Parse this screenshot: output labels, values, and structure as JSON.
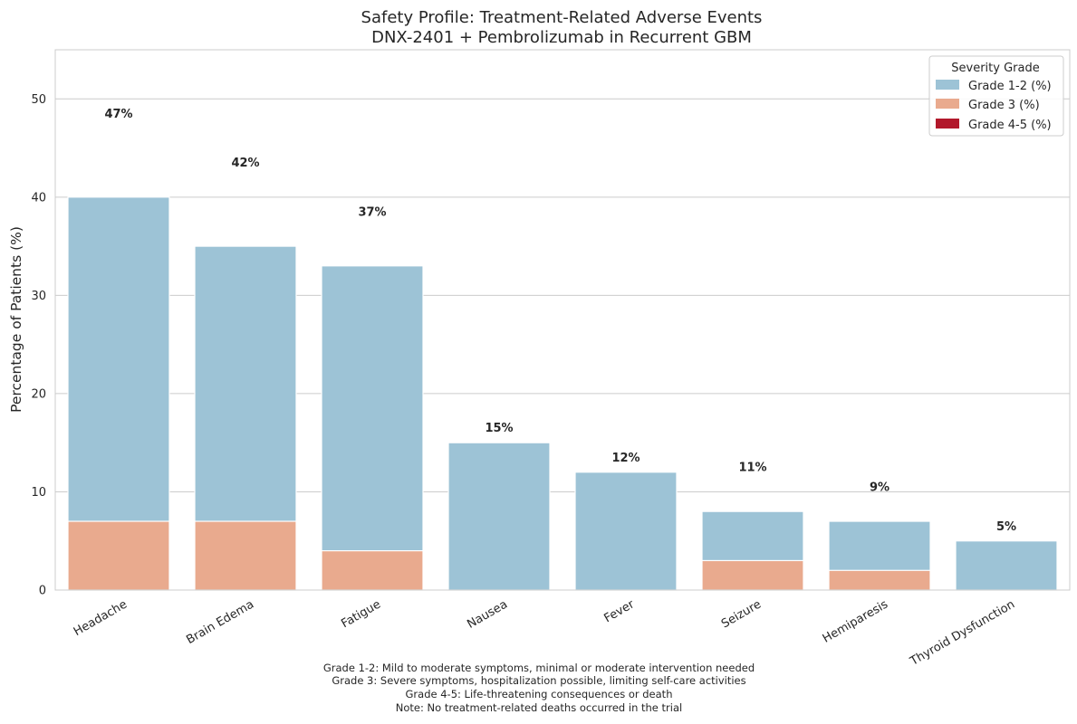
{
  "chart_data": {
    "type": "bar",
    "stacked": true,
    "title": "Safety Profile: Treatment-Related Adverse Events",
    "subtitle": "DNX-2401 + Pembrolizumab in Recurrent GBM",
    "xlabel": "",
    "ylabel": "Percentage of Patients (%)",
    "ylim": [
      0,
      55
    ],
    "yticks": [
      "0",
      "10",
      "20",
      "30",
      "40",
      "50"
    ],
    "grid": true,
    "categories": [
      "Headache",
      "Brain Edema",
      "Fatigue",
      "Nausea",
      "Fever",
      "Seizure",
      "Hemiparesis",
      "Thyroid Dysfunction"
    ],
    "series": [
      {
        "name": "Grade 1-2 (%)",
        "color": "#9dc3d6",
        "values": [
          40,
          35,
          33,
          15,
          12,
          8,
          7,
          5
        ]
      },
      {
        "name": "Grade 3 (%)",
        "color": "#e9aa8e",
        "values": [
          7,
          7,
          4,
          0,
          0,
          3,
          2,
          0
        ]
      },
      {
        "name": "Grade 4-5 (%)",
        "color": "#b2182b",
        "values": [
          0,
          0,
          0,
          0,
          0,
          0,
          0,
          0
        ]
      }
    ],
    "totals": [
      47,
      42,
      37,
      15,
      12,
      11,
      9,
      5
    ],
    "total_labels": [
      "47%",
      "42%",
      "37%",
      "15%",
      "12%",
      "11%",
      "9%",
      "5%"
    ],
    "legend": {
      "title": "Severity Grade",
      "position": "top-right"
    },
    "footnote": [
      "Grade 1-2: Mild to moderate symptoms, minimal or moderate intervention needed",
      "Grade 3: Severe symptoms, hospitalization possible, limiting self-care activities",
      "Grade 4-5: Life-threatening consequences or death",
      "Note: No treatment-related deaths occurred in the trial"
    ]
  }
}
